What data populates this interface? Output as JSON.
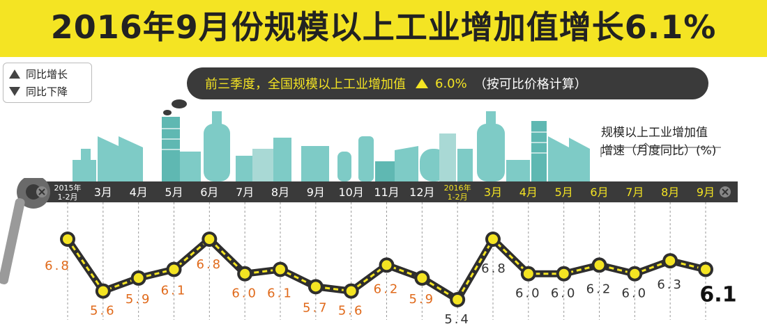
{
  "title": "2016年9月份规模以上工业增加值增长6.1%",
  "legend": {
    "up_label": "同比增长",
    "down_label": "同比下降"
  },
  "summary": {
    "prefix": "前三季度，全国规模以上工业增加值",
    "value": "6.0%",
    "suffix": "（按可比价格计算）"
  },
  "series_label_line1": "规模以上工业增加值",
  "series_label_line2": "增速（月度同比）(%)",
  "colors": {
    "title_band": "#f4e423",
    "bar": "#3a3a3a",
    "label_2015": "#e06a1b",
    "label_2016": "#333333",
    "highlight": "#f4e423",
    "building": "#7ecbc6"
  },
  "chart_data": {
    "type": "line",
    "title": "2016年9月份规模以上工业增加值增长6.1%",
    "ylabel": "规模以上工业增加值增速（月度同比）(%)",
    "categories": [
      {
        "l1": "2015年",
        "l2": "1-2月"
      },
      {
        "l1": "3月"
      },
      {
        "l1": "4月"
      },
      {
        "l1": "5月"
      },
      {
        "l1": "6月"
      },
      {
        "l1": "7月"
      },
      {
        "l1": "8月"
      },
      {
        "l1": "9月"
      },
      {
        "l1": "10月"
      },
      {
        "l1": "11月"
      },
      {
        "l1": "12月"
      },
      {
        "l1": "2016年",
        "l2": "1-2月"
      },
      {
        "l1": "3月"
      },
      {
        "l1": "4月"
      },
      {
        "l1": "5月"
      },
      {
        "l1": "6月"
      },
      {
        "l1": "7月"
      },
      {
        "l1": "8月"
      },
      {
        "l1": "9月"
      }
    ],
    "values": [
      6.8,
      5.6,
      5.9,
      6.1,
      6.8,
      6.0,
      6.1,
      5.7,
      5.6,
      6.2,
      5.9,
      5.4,
      6.8,
      6.0,
      6.0,
      6.2,
      6.0,
      6.3,
      6.1
    ],
    "value_labels": [
      "6.8",
      "5.6",
      "5.9",
      "6.1",
      "6.8",
      "6.0",
      "6.1",
      "5.7",
      "5.6",
      "6.2",
      "5.9",
      "5.4",
      "6.8",
      "6.0",
      "6.0",
      "6.2",
      "6.0",
      "6.3",
      "6.1"
    ],
    "ylim": [
      5.4,
      6.8
    ]
  }
}
